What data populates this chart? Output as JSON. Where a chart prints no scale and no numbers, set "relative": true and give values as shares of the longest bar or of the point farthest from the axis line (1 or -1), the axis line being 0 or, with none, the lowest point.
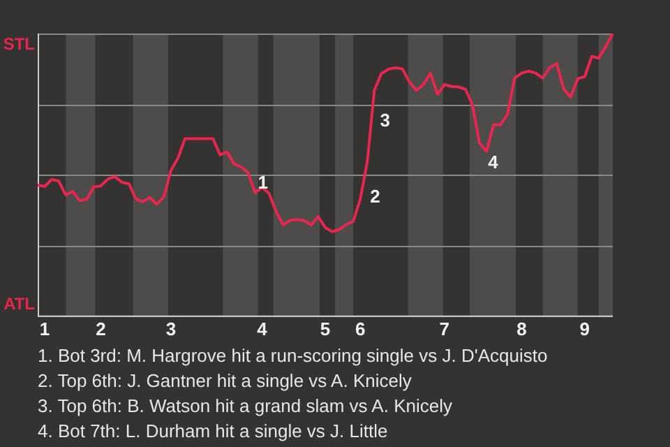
{
  "chart_data": {
    "type": "line",
    "relative": true,
    "categories": [
      null,
      "1",
      null,
      null,
      null,
      null,
      null,
      null,
      null,
      "2",
      null,
      null,
      null,
      null,
      null,
      null,
      null,
      null,
      null,
      "3",
      null,
      null,
      null,
      null,
      null,
      null,
      null,
      null,
      null,
      null,
      null,
      null,
      "4",
      null,
      null,
      null,
      null,
      null,
      null,
      null,
      null,
      "5",
      null,
      null,
      null,
      null,
      "6",
      null,
      null,
      null,
      null,
      null,
      null,
      null,
      null,
      null,
      null,
      null,
      "7",
      null,
      null,
      null,
      null,
      null,
      null,
      null,
      null,
      null,
      null,
      "8",
      null,
      null,
      null,
      null,
      null,
      null,
      null,
      null,
      "9",
      null,
      null,
      null,
      null
    ],
    "grid": "y",
    "legend": false,
    "marker": "none",
    "line_style": "solid",
    "series": [
      {
        "color": "#e8264f",
        "values": [
          0.464,
          0.459,
          0.484,
          0.478,
          0.429,
          0.441,
          0.409,
          0.414,
          0.457,
          0.461,
          0.485,
          0.494,
          0.474,
          0.469,
          0.415,
          0.405,
          0.42,
          0.396,
          0.423,
          0.516,
          0.559,
          0.628,
          0.628,
          0.628,
          0.628,
          0.628,
          0.571,
          0.581,
          0.539,
          0.528,
          0.507,
          0.437,
          0.456,
          0.434,
          0.37,
          0.323,
          0.339,
          0.342,
          0.338,
          0.323,
          0.352,
          0.314,
          0.299,
          0.307,
          0.324,
          0.336,
          0.414,
          0.547,
          0.799,
          0.858,
          0.874,
          0.879,
          0.875,
          0.829,
          0.799,
          0.819,
          0.86,
          0.785,
          0.819,
          0.813,
          0.811,
          0.803,
          0.747,
          0.612,
          0.583,
          0.677,
          0.677,
          0.715,
          0.842,
          0.86,
          0.867,
          0.86,
          0.843,
          0.879,
          0.894,
          0.804,
          0.775,
          0.84,
          0.848,
          0.919,
          0.913,
          0.954,
          1.0
        ]
      }
    ],
    "annotations": [
      "STL",
      "ATL",
      "1",
      "2",
      "3",
      "4",
      "1. Bot 3rd: M. Hargrove hit a run-scoring single vs J. D'Acquisto",
      "2. Top 6th: J. Gantner hit a single vs A. Knicely",
      "3. Top 6th: B. Watson hit a grand slam vs A. Knicely",
      "4. Bot 7th: L. Durham hit a single vs J. Little"
    ]
  }
}
